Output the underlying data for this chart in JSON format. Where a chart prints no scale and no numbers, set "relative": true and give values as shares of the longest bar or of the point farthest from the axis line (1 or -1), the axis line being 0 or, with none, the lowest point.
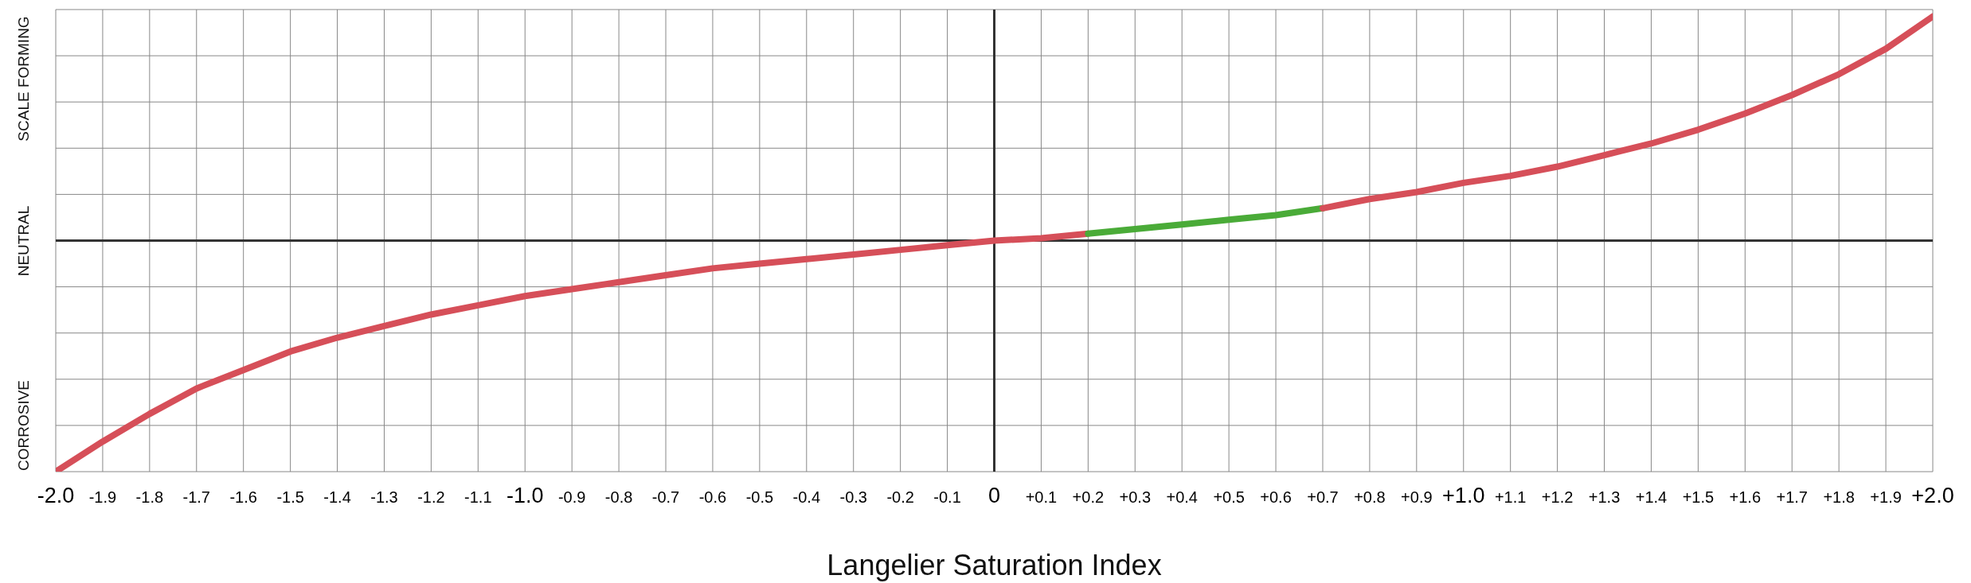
{
  "chart_data": {
    "type": "line",
    "xlabel": "Langelier Saturation Index",
    "relative": true,
    "grid": true,
    "legend": false,
    "marker": "none",
    "line_style": "solid",
    "annotations": [
      "SCALE FORMING",
      "NEUTRAL",
      "CORROSIVE"
    ],
    "xlim": [
      -2.0,
      2.0
    ],
    "xticks": [
      {
        "value": -2.0,
        "label": "-2.0"
      },
      {
        "value": -1.9,
        "label": "-1.9"
      },
      {
        "value": -1.8,
        "label": "-1.8"
      },
      {
        "value": -1.7,
        "label": "-1.7"
      },
      {
        "value": -1.6,
        "label": "-1.6"
      },
      {
        "value": -1.5,
        "label": "-1.5"
      },
      {
        "value": -1.4,
        "label": "-1.4"
      },
      {
        "value": -1.3,
        "label": "-1.3"
      },
      {
        "value": -1.2,
        "label": "-1.2"
      },
      {
        "value": -1.1,
        "label": "-1.1"
      },
      {
        "value": -1.0,
        "label": "-1.0"
      },
      {
        "value": -0.9,
        "label": "-0.9"
      },
      {
        "value": -0.8,
        "label": "-0.8"
      },
      {
        "value": -0.7,
        "label": "-0.7"
      },
      {
        "value": -0.6,
        "label": "-0.6"
      },
      {
        "value": -0.5,
        "label": "-0.5"
      },
      {
        "value": -0.4,
        "label": "-0.4"
      },
      {
        "value": -0.3,
        "label": "-0.3"
      },
      {
        "value": -0.2,
        "label": "-0.2"
      },
      {
        "value": -0.1,
        "label": "-0.1"
      },
      0,
      {
        "value": 0.1,
        "label": "+0.1"
      },
      {
        "value": 0.2,
        "label": "+0.2"
      },
      {
        "value": 0.3,
        "label": "+0.3"
      },
      {
        "value": 0.4,
        "label": "+0.4"
      },
      {
        "value": 0.5,
        "label": "+0.5"
      },
      {
        "value": 0.6,
        "label": "+0.6"
      },
      {
        "value": 0.7,
        "label": "+0.7"
      },
      {
        "value": 0.8,
        "label": "+0.8"
      },
      {
        "value": 0.9,
        "label": "+0.9"
      },
      {
        "value": 1.0,
        "label": "+1.0"
      },
      {
        "value": 1.1,
        "label": "+1.1"
      },
      {
        "value": 1.2,
        "label": "+1.2"
      },
      {
        "value": 1.3,
        "label": "+1.3"
      },
      {
        "value": 1.4,
        "label": "+1.4"
      },
      {
        "value": 1.5,
        "label": "+1.5"
      },
      {
        "value": 1.6,
        "label": "+1.6"
      },
      {
        "value": 1.7,
        "label": "+1.7"
      },
      {
        "value": 1.8,
        "label": "+1.8"
      },
      {
        "value": 1.9,
        "label": "+1.9"
      },
      {
        "value": 2.0,
        "label": "+2.0"
      }
    ],
    "series": [
      {
        "color": "#d64f59",
        "x": [
          -2.0,
          -1.9,
          -1.8,
          -1.7,
          -1.6,
          -1.5,
          -1.4,
          -1.3,
          -1.2,
          -1.1,
          -1.0,
          -0.9,
          -0.8,
          -0.7,
          -0.6,
          -0.5,
          -0.4,
          -0.3,
          -0.2,
          -0.1,
          0,
          0.1,
          0.2
        ],
        "values": [
          -1,
          -0.87,
          -0.75,
          -0.64,
          -0.56,
          -0.48,
          -0.42,
          -0.37,
          -0.32,
          -0.28,
          -0.24,
          -0.21,
          -0.18,
          -0.15,
          -0.12,
          -0.1,
          -0.08,
          -0.06,
          -0.04,
          -0.02,
          0,
          0.01,
          0.03
        ]
      },
      {
        "color": "#4aab38",
        "x": [
          0.2,
          0.3,
          0.4,
          0.5,
          0.6,
          0.7
        ],
        "values": [
          0.03,
          0.05,
          0.07,
          0.09,
          0.11,
          0.14
        ]
      },
      {
        "color": "#d64f59",
        "x": [
          0.7,
          0.8,
          0.9,
          1.0,
          1.1,
          1.2,
          1.3,
          1.4,
          1.5,
          1.6,
          1.7,
          1.8,
          1.9,
          2.0
        ],
        "values": [
          0.14,
          0.18,
          0.21,
          0.25,
          0.28,
          0.32,
          0.37,
          0.42,
          0.48,
          0.55,
          0.63,
          0.72,
          0.83,
          0.97
        ]
      }
    ]
  }
}
